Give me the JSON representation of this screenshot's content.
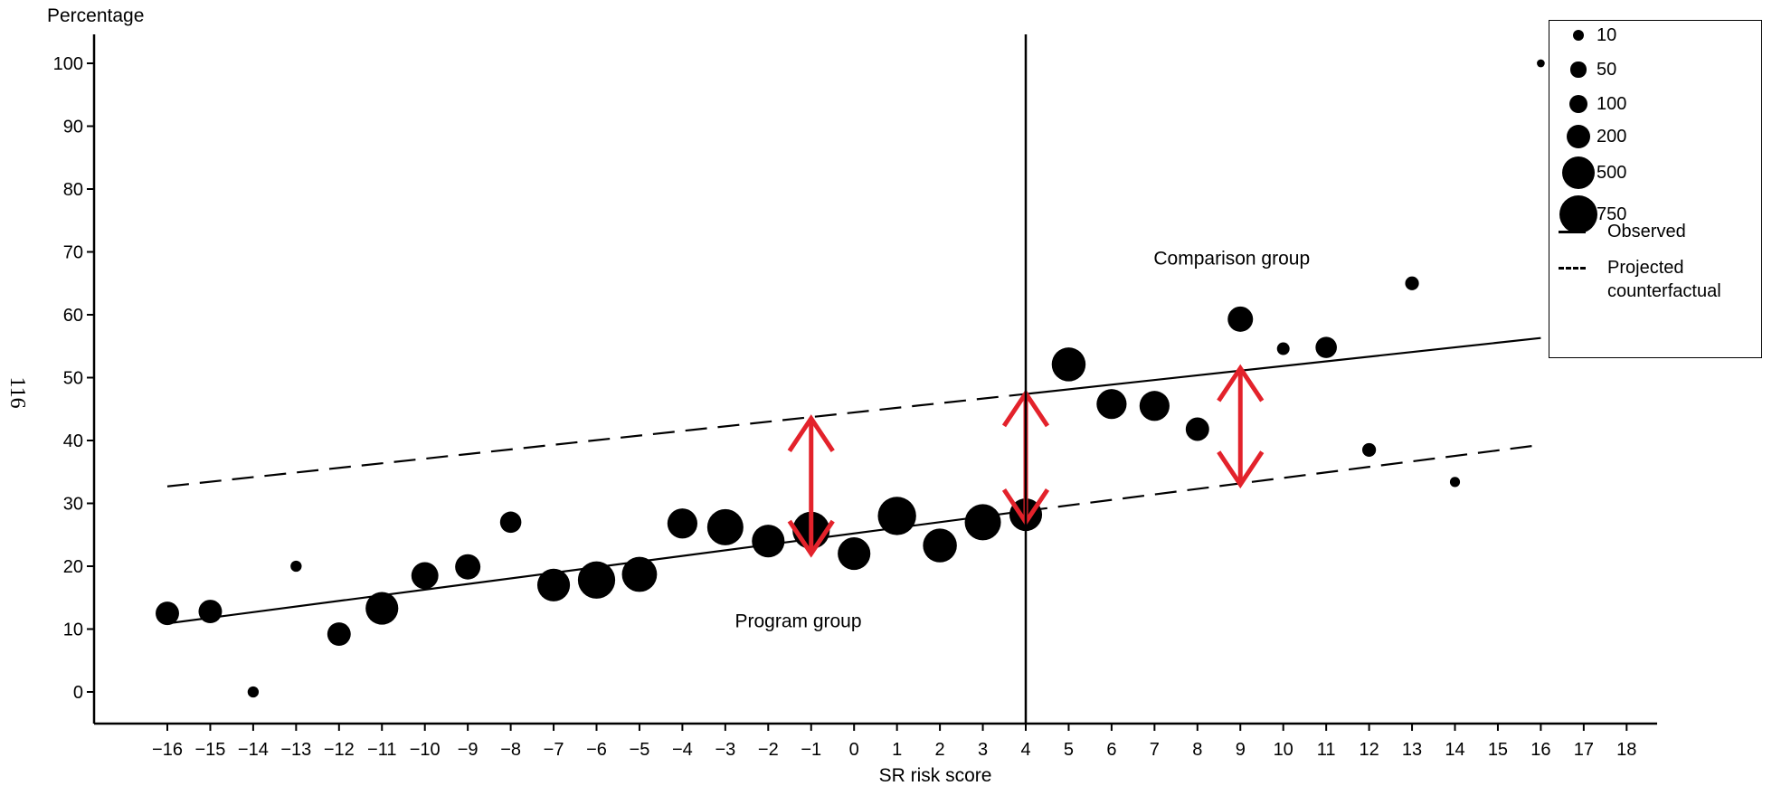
{
  "chart_data": {
    "type": "scatter",
    "title": "",
    "xlabel": "SR risk score",
    "ylabel": "Percentage",
    "side_label": "116",
    "xlim": [
      -17.7,
      19.0
    ],
    "ylim": [
      -5,
      105
    ],
    "x_ticks": [
      -16,
      -15,
      -14,
      -13,
      -12,
      -11,
      -10,
      -9,
      -8,
      -7,
      -6,
      -5,
      -4,
      -3,
      -2,
      -1,
      0,
      1,
      2,
      3,
      4,
      5,
      6,
      7,
      8,
      9,
      10,
      11,
      12,
      13,
      14,
      15,
      16,
      17,
      18
    ],
    "y_ticks": [
      0,
      10,
      20,
      30,
      40,
      50,
      60,
      70,
      80,
      90,
      100
    ],
    "grid": false,
    "cutoff_x": 4,
    "points": [
      {
        "x": -16,
        "y": 12.5,
        "n": 200
      },
      {
        "x": -15,
        "y": 12.8,
        "n": 200
      },
      {
        "x": -14,
        "y": 0,
        "n": 10
      },
      {
        "x": -13,
        "y": 20,
        "n": 10
      },
      {
        "x": -12,
        "y": 9.2,
        "n": 200
      },
      {
        "x": -11,
        "y": 13.3,
        "n": 500
      },
      {
        "x": -10,
        "y": 18.5,
        "n": 300
      },
      {
        "x": -9,
        "y": 19.9,
        "n": 250
      },
      {
        "x": -8,
        "y": 27,
        "n": 150
      },
      {
        "x": -7,
        "y": 17,
        "n": 500
      },
      {
        "x": -6,
        "y": 17.8,
        "n": 700
      },
      {
        "x": -5,
        "y": 18.7,
        "n": 600
      },
      {
        "x": -4,
        "y": 26.8,
        "n": 400
      },
      {
        "x": -3,
        "y": 26.2,
        "n": 650
      },
      {
        "x": -2,
        "y": 24,
        "n": 500
      },
      {
        "x": -1,
        "y": 25.7,
        "n": 700
      },
      {
        "x": 0,
        "y": 22,
        "n": 500
      },
      {
        "x": 1,
        "y": 28,
        "n": 750
      },
      {
        "x": 2,
        "y": 23.3,
        "n": 550
      },
      {
        "x": 3,
        "y": 27,
        "n": 650
      },
      {
        "x": 4,
        "y": 28.2,
        "n": 500
      },
      {
        "x": 5,
        "y": 52.1,
        "n": 550
      },
      {
        "x": 6,
        "y": 45.8,
        "n": 400
      },
      {
        "x": 7,
        "y": 45.5,
        "n": 400
      },
      {
        "x": 8,
        "y": 41.8,
        "n": 200
      },
      {
        "x": 9,
        "y": 59.3,
        "n": 250
      },
      {
        "x": 10,
        "y": 54.6,
        "n": 20
      },
      {
        "x": 11,
        "y": 54.8,
        "n": 150
      },
      {
        "x": 12,
        "y": 38.5,
        "n": 30
      },
      {
        "x": 13,
        "y": 65,
        "n": 30
      },
      {
        "x": 14,
        "y": 33.4,
        "n": 5
      },
      {
        "x": 16,
        "y": 100,
        "n": 0.05
      }
    ],
    "lines": [
      {
        "name": "Observed",
        "style": "solid",
        "x": [
          -16,
          4
        ],
        "y": [
          10.9,
          28.8
        ]
      },
      {
        "name": "Observed",
        "style": "solid",
        "x": [
          4,
          16
        ],
        "y": [
          47.4,
          56.3
        ]
      },
      {
        "name": "Projected counterfactual",
        "style": "dashed",
        "x": [
          -16,
          4
        ],
        "y": [
          32.7,
          47.4
        ]
      },
      {
        "name": "Projected counterfactual",
        "style": "dashed",
        "x": [
          4,
          16
        ],
        "y": [
          28.8,
          39.3
        ]
      }
    ],
    "arrows": [
      {
        "x": -1,
        "y_from": 22,
        "y_to": 43.5
      },
      {
        "x": 4,
        "y_from": 27,
        "y_to": 47.5
      },
      {
        "x": 9,
        "y_from": 33,
        "y_to": 51.5
      }
    ],
    "arrow_color": "#e3222b",
    "annotations": [
      {
        "text": "Comparison group",
        "x": 8.8,
        "y": 68
      },
      {
        "text": "Program group",
        "x": -1.3,
        "y": 10.3
      }
    ],
    "legend": {
      "position": "top-right",
      "sizes": [
        {
          "label": "10",
          "n": 10
        },
        {
          "label": "50",
          "n": 50
        },
        {
          "label": "100",
          "n": 100
        },
        {
          "label": "200",
          "n": 200
        },
        {
          "label": "500",
          "n": 500
        },
        {
          "label": "750",
          "n": 750
        }
      ],
      "observed_label": "Observed",
      "projected_label_line1": "Projected",
      "projected_label_line2": "counterfactual"
    }
  }
}
